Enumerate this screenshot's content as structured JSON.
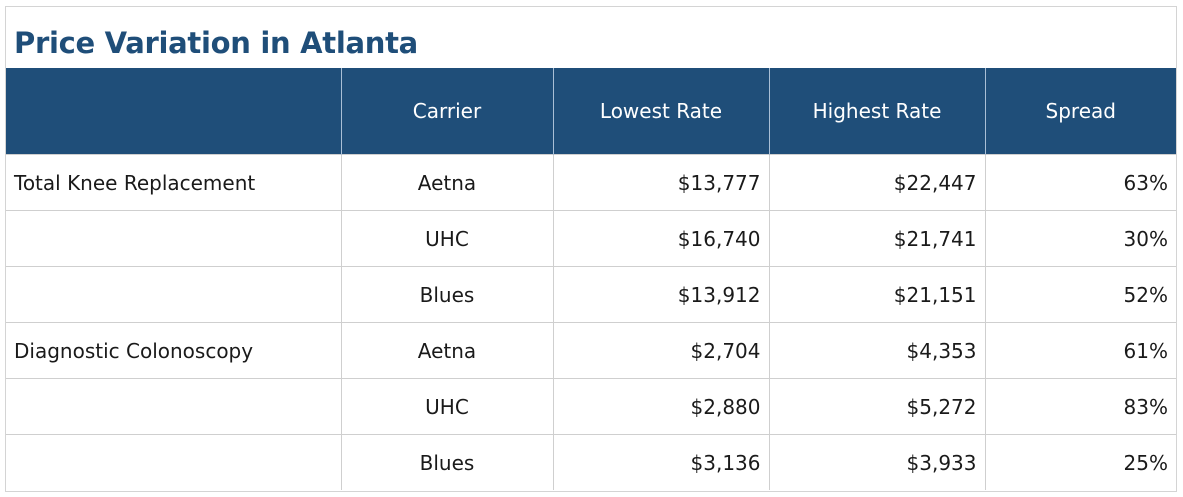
{
  "chart_data": {
    "type": "table",
    "title": "Price Variation in Atlanta",
    "columns": [
      "",
      "Carrier",
      "Lowest Rate",
      "Highest Rate",
      "Spread"
    ],
    "rows": [
      {
        "procedure": "Total Knee Replacement",
        "carrier": "Aetna",
        "lowest": "$13,777",
        "highest": "$22,447",
        "spread": "63%"
      },
      {
        "procedure": "",
        "carrier": "UHC",
        "lowest": "$16,740",
        "highest": "$21,741",
        "spread": "30%"
      },
      {
        "procedure": "",
        "carrier": "Blues",
        "lowest": "$13,912",
        "highest": "$21,151",
        "spread": "52%"
      },
      {
        "procedure": "Diagnostic Colonoscopy",
        "carrier": "Aetna",
        "lowest": "$2,704",
        "highest": "$4,353",
        "spread": "61%"
      },
      {
        "procedure": "",
        "carrier": "UHC",
        "lowest": "$2,880",
        "highest": "$5,272",
        "spread": "83%"
      },
      {
        "procedure": "",
        "carrier": "Blues",
        "lowest": "$3,136",
        "highest": "$3,933",
        "spread": "25%"
      }
    ],
    "colors": {
      "header_bg": "#1f4e79",
      "header_text": "#ffffff",
      "title": "#1f4e79"
    }
  }
}
